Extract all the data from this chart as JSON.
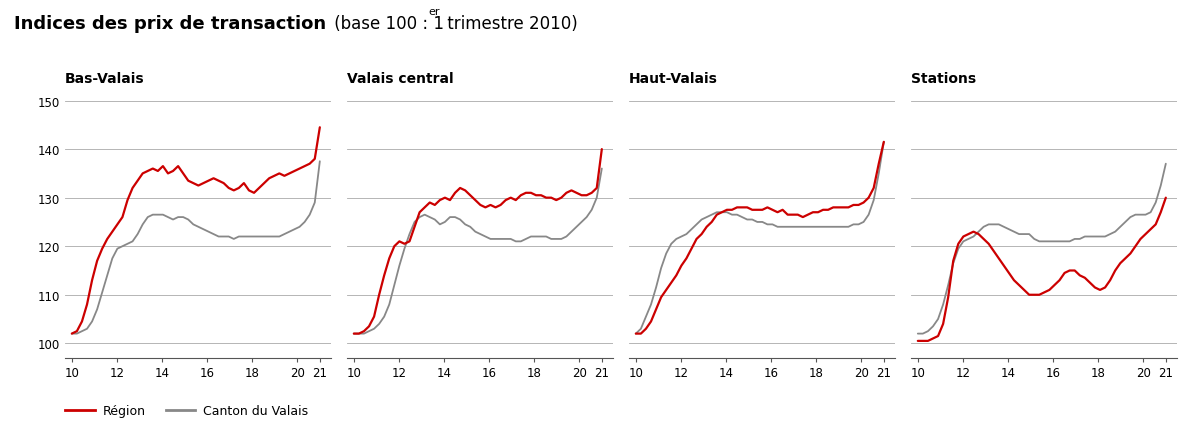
{
  "title_bold": "Indices des prix de transaction",
  "title_normal": " (base 100 : 1",
  "title_super": "er",
  "title_end": " trimestre 2010)",
  "subplots": [
    "Bas-Valais",
    "Valais central",
    "Haut-Valais",
    "Stations"
  ],
  "ylim": [
    97,
    153
  ],
  "yticks": [
    100,
    110,
    120,
    130,
    140,
    150
  ],
  "xticks": [
    10,
    12,
    14,
    16,
    18,
    20,
    21
  ],
  "xlim": [
    9.7,
    21.5
  ],
  "legend": [
    {
      "label": "Région",
      "color": "#cc0000"
    },
    {
      "label": "Canton du Valais",
      "color": "#888888"
    }
  ],
  "region_color": "#cc0000",
  "canton_color": "#888888",
  "bas_valais_region": [
    102.0,
    102.5,
    104.5,
    108.0,
    113.0,
    117.0,
    119.5,
    121.5,
    123.0,
    124.5,
    126.0,
    129.5,
    132.0,
    133.5,
    135.0,
    135.5,
    136.0,
    135.5,
    136.5,
    135.0,
    135.5,
    136.5,
    135.0,
    133.5,
    133.0,
    132.5,
    133.0,
    133.5,
    134.0,
    133.5,
    133.0,
    132.0,
    131.5,
    132.0,
    133.0,
    131.5,
    131.0,
    132.0,
    133.0,
    134.0,
    134.5,
    135.0,
    134.5,
    135.0,
    135.5,
    136.0,
    136.5,
    137.0,
    138.0,
    144.5
  ],
  "bas_valais_canton": [
    102.0,
    102.0,
    102.5,
    103.0,
    104.5,
    107.0,
    110.5,
    114.0,
    117.5,
    119.5,
    120.0,
    120.5,
    121.0,
    122.5,
    124.5,
    126.0,
    126.5,
    126.5,
    126.5,
    126.0,
    125.5,
    126.0,
    126.0,
    125.5,
    124.5,
    124.0,
    123.5,
    123.0,
    122.5,
    122.0,
    122.0,
    122.0,
    121.5,
    122.0,
    122.0,
    122.0,
    122.0,
    122.0,
    122.0,
    122.0,
    122.0,
    122.0,
    122.5,
    123.0,
    123.5,
    124.0,
    125.0,
    126.5,
    129.0,
    137.5
  ],
  "valais_central_region": [
    102.0,
    102.0,
    102.5,
    103.5,
    105.5,
    110.0,
    114.0,
    117.5,
    120.0,
    121.0,
    120.5,
    121.0,
    124.0,
    127.0,
    128.0,
    129.0,
    128.5,
    129.5,
    130.0,
    129.5,
    131.0,
    132.0,
    131.5,
    130.5,
    129.5,
    128.5,
    128.0,
    128.5,
    128.0,
    128.5,
    129.5,
    130.0,
    129.5,
    130.5,
    131.0,
    131.0,
    130.5,
    130.5,
    130.0,
    130.0,
    129.5,
    130.0,
    131.0,
    131.5,
    131.0,
    130.5,
    130.5,
    131.0,
    132.0,
    140.0
  ],
  "valais_central_canton": [
    102.0,
    102.0,
    102.0,
    102.5,
    103.0,
    104.0,
    105.5,
    108.0,
    112.0,
    116.0,
    119.5,
    122.5,
    125.0,
    126.0,
    126.5,
    126.0,
    125.5,
    124.5,
    125.0,
    126.0,
    126.0,
    125.5,
    124.5,
    124.0,
    123.0,
    122.5,
    122.0,
    121.5,
    121.5,
    121.5,
    121.5,
    121.5,
    121.0,
    121.0,
    121.5,
    122.0,
    122.0,
    122.0,
    122.0,
    121.5,
    121.5,
    121.5,
    122.0,
    123.0,
    124.0,
    125.0,
    126.0,
    127.5,
    130.0,
    136.0
  ],
  "haut_valais_region": [
    102.0,
    102.0,
    103.0,
    104.5,
    107.0,
    109.5,
    111.0,
    112.5,
    114.0,
    116.0,
    117.5,
    119.5,
    121.5,
    122.5,
    124.0,
    125.0,
    126.5,
    127.0,
    127.5,
    127.5,
    128.0,
    128.0,
    128.0,
    127.5,
    127.5,
    127.5,
    128.0,
    127.5,
    127.0,
    127.5,
    126.5,
    126.5,
    126.5,
    126.0,
    126.5,
    127.0,
    127.0,
    127.5,
    127.5,
    128.0,
    128.0,
    128.0,
    128.0,
    128.5,
    128.5,
    129.0,
    130.0,
    132.0,
    137.0,
    141.5
  ],
  "haut_valais_canton": [
    102.0,
    103.0,
    105.5,
    108.0,
    111.5,
    115.5,
    118.5,
    120.5,
    121.5,
    122.0,
    122.5,
    123.5,
    124.5,
    125.5,
    126.0,
    126.5,
    127.0,
    127.0,
    127.0,
    126.5,
    126.5,
    126.0,
    125.5,
    125.5,
    125.0,
    125.0,
    124.5,
    124.5,
    124.0,
    124.0,
    124.0,
    124.0,
    124.0,
    124.0,
    124.0,
    124.0,
    124.0,
    124.0,
    124.0,
    124.0,
    124.0,
    124.0,
    124.0,
    124.5,
    124.5,
    125.0,
    126.5,
    129.5,
    135.0,
    141.5
  ],
  "stations_region": [
    100.5,
    100.5,
    100.5,
    101.0,
    101.5,
    104.0,
    109.5,
    117.0,
    120.5,
    122.0,
    122.5,
    123.0,
    122.5,
    121.5,
    120.5,
    119.0,
    117.5,
    116.0,
    114.5,
    113.0,
    112.0,
    111.0,
    110.0,
    110.0,
    110.0,
    110.5,
    111.0,
    112.0,
    113.0,
    114.5,
    115.0,
    115.0,
    114.0,
    113.5,
    112.5,
    111.5,
    111.0,
    111.5,
    113.0,
    115.0,
    116.5,
    117.5,
    118.5,
    120.0,
    121.5,
    122.5,
    123.5,
    124.5,
    127.0,
    130.0
  ],
  "stations_canton": [
    102.0,
    102.0,
    102.5,
    103.5,
    105.0,
    108.0,
    112.0,
    116.5,
    119.5,
    121.0,
    121.5,
    122.0,
    123.0,
    124.0,
    124.5,
    124.5,
    124.5,
    124.0,
    123.5,
    123.0,
    122.5,
    122.5,
    122.5,
    121.5,
    121.0,
    121.0,
    121.0,
    121.0,
    121.0,
    121.0,
    121.0,
    121.5,
    121.5,
    122.0,
    122.0,
    122.0,
    122.0,
    122.0,
    122.5,
    123.0,
    124.0,
    125.0,
    126.0,
    126.5,
    126.5,
    126.5,
    127.0,
    129.0,
    132.5,
    137.0
  ]
}
